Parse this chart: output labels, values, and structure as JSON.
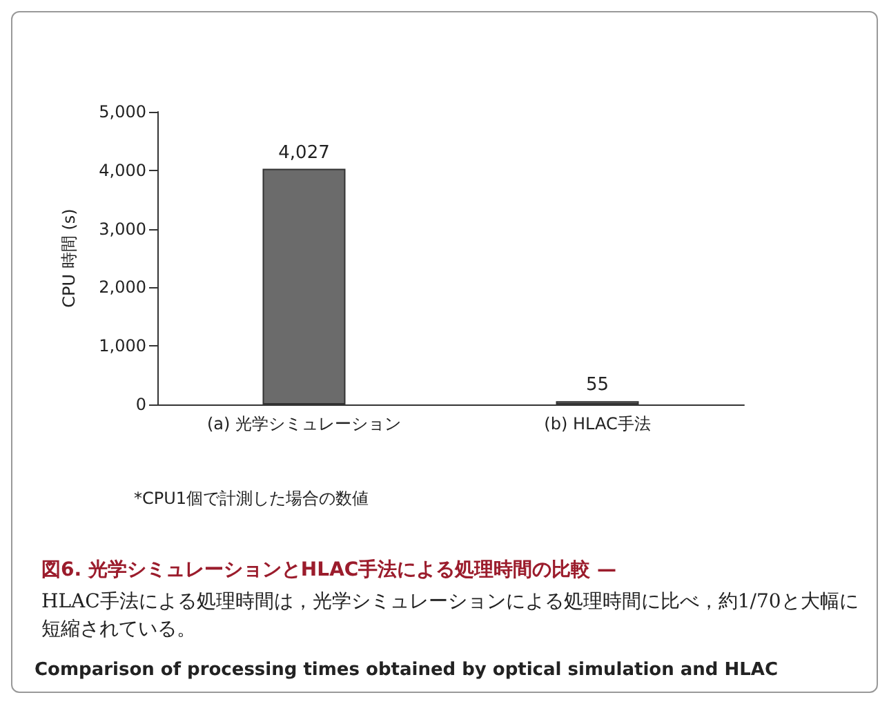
{
  "chart_data": {
    "type": "bar",
    "title": "図6. 光学シミュレーションとHLAC手法による処理時間の比較 —",
    "subtitle": "HLAC手法による処理時間は，光学シミュレーションによる処理時間に比べ，約1/70と大幅に短縮されている。",
    "ylabel": "CPU 時間 (s)",
    "categories": [
      "(a) 光学シミュレーション",
      "(b) HLAC手法"
    ],
    "values": [
      4027,
      55
    ],
    "value_labels": [
      "4,027",
      "55"
    ],
    "color": "#6b6b6b",
    "ylim": [
      0,
      5000
    ],
    "yticks": [
      {
        "value": 0,
        "label": "0"
      },
      {
        "value": 1000,
        "label": "1,000"
      },
      {
        "value": 2000,
        "label": "2,000"
      },
      {
        "value": 3000,
        "label": "3,000"
      },
      {
        "value": 4000,
        "label": "4,000"
      },
      {
        "value": 5000,
        "label": "5,000"
      }
    ],
    "annotations": [
      "*CPU1個で計測した場合の数値",
      "Comparison of processing times obtained by optical simulation and HLAC"
    ]
  }
}
